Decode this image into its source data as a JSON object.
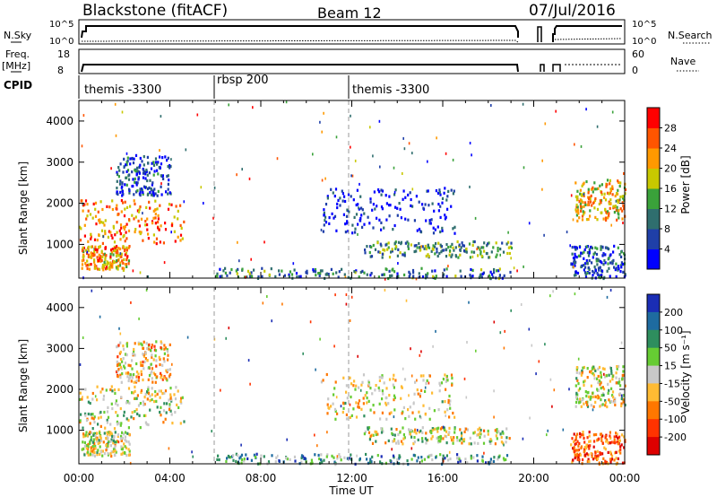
{
  "header": {
    "station": "Blackstone (fitACF)",
    "beam": "Beam 12",
    "date": "07/Jul/2016"
  },
  "summary_panels": {
    "nsky_label": "N.Sky",
    "nsky_ticks": [
      "10^5",
      "10^0"
    ],
    "nsearch_label": "N.Search",
    "nsearch_ticks": [
      "10^5",
      "10^0"
    ],
    "freq_label": "Freq.",
    "freq_unit": "[MHz]",
    "freq_ticks": [
      "18",
      "8"
    ],
    "nave_label": "Nave",
    "nave_ticks": [
      "60",
      "0"
    ],
    "cpid_label": "CPID",
    "cpid_segments": [
      {
        "label": "themis -3300",
        "start_h": 0,
        "end_h": 6
      },
      {
        "label": "rbsp 200",
        "start_h": 6,
        "end_h": 11.95
      },
      {
        "label": "themis -3300",
        "start_h": 11.95,
        "end_h": 24
      }
    ]
  },
  "chart_data": [
    {
      "type": "heatmap",
      "name": "power",
      "ylabel": "Slant Range [km]",
      "x_range_hours": [
        0,
        24
      ],
      "y_range_km": [
        180,
        4500
      ],
      "yticks": [
        "1000",
        "2000",
        "3000",
        "4000"
      ],
      "colorbar_label": "Power [dB]",
      "colorbar_ticks": [
        "4",
        "8",
        "12",
        "16",
        "20",
        "24",
        "28"
      ],
      "colorbar_colors": [
        "#0000ff",
        "#1f3fa8",
        "#2f6e6e",
        "#3aa23a",
        "#c8c800",
        "#ff9900",
        "#ff5500",
        "#ff0000"
      ],
      "scatter_regions": [
        {
          "t0": 0.0,
          "t1": 4.6,
          "r0": 1050,
          "r1": 2100,
          "level": 0.75
        },
        {
          "t0": 0.1,
          "t1": 2.2,
          "r0": 400,
          "r1": 1000,
          "level": 0.7
        },
        {
          "t0": 1.6,
          "t1": 4.0,
          "r0": 2200,
          "r1": 3200,
          "level": 0.2
        },
        {
          "t0": 6.0,
          "t1": 19.0,
          "r0": 200,
          "r1": 450,
          "level": 0.3
        },
        {
          "t0": 12.5,
          "t1": 19.0,
          "r0": 700,
          "r1": 1100,
          "level": 0.35
        },
        {
          "t0": 10.6,
          "t1": 16.5,
          "r0": 1300,
          "r1": 2400,
          "level": 0.1
        },
        {
          "t0": 21.8,
          "t1": 24.0,
          "r0": 1600,
          "r1": 2600,
          "level": 0.65
        },
        {
          "t0": 21.6,
          "t1": 24.0,
          "r0": 200,
          "r1": 1000,
          "level": 0.2
        }
      ]
    },
    {
      "type": "heatmap",
      "name": "velocity",
      "ylabel": "Slant Range [km]",
      "x_range_hours": [
        0,
        24
      ],
      "y_range_km": [
        180,
        4500
      ],
      "yticks": [
        "1000",
        "2000",
        "3000",
        "4000"
      ],
      "xticks": [
        "00:00",
        "04:00",
        "08:00",
        "12:00",
        "16:00",
        "20:00",
        "00:00"
      ],
      "xlabel": "Time UT",
      "colorbar_label": "Velocity [m s⁻¹]",
      "colorbar_ticks": [
        "200",
        "100",
        "50",
        "15",
        "-15",
        "-50",
        "-100",
        "-200"
      ],
      "colorbar_colors": [
        "#1a2db5",
        "#1e6ba0",
        "#2e8e5e",
        "#66cc33",
        "#c8c8c8",
        "#ffbb33",
        "#ff7700",
        "#ff3300",
        "#dd0000"
      ],
      "scatter_regions": [
        {
          "t0": 0.0,
          "t1": 4.6,
          "r0": 1050,
          "r1": 2100,
          "level": 0.5
        },
        {
          "t0": 0.1,
          "t1": 2.2,
          "r0": 400,
          "r1": 1000,
          "level": 0.5
        },
        {
          "t0": 1.6,
          "t1": 4.0,
          "r0": 2200,
          "r1": 3200,
          "level": 0.6
        },
        {
          "t0": 6.0,
          "t1": 19.0,
          "r0": 200,
          "r1": 450,
          "level": 0.3
        },
        {
          "t0": 12.5,
          "t1": 19.0,
          "r0": 700,
          "r1": 1100,
          "level": 0.5
        },
        {
          "t0": 10.6,
          "t1": 16.5,
          "r0": 1300,
          "r1": 2400,
          "level": 0.55
        },
        {
          "t0": 21.8,
          "t1": 24.0,
          "r0": 1600,
          "r1": 2600,
          "level": 0.5
        },
        {
          "t0": 21.6,
          "t1": 24.0,
          "r0": 200,
          "r1": 1000,
          "level": 0.8
        }
      ]
    }
  ]
}
